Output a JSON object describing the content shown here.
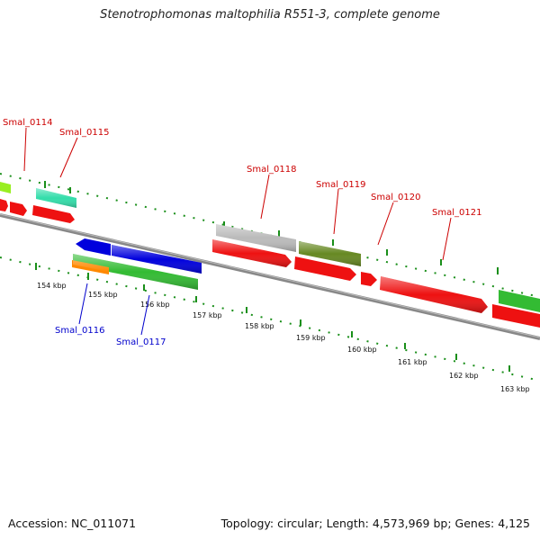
{
  "title": "Stenotrophomonas maltophilia R551-3, complete genome",
  "footer": {
    "accession": "Accession: NC_011071",
    "summary": "Topology: circular; Length: 4,573,969 bp; Genes: 4,125"
  },
  "colors": {
    "backbone": "#777777",
    "ticks": "#1a8f1a",
    "label_red": "#cc0000",
    "label_blue": "#0000cc"
  },
  "scale_labels": [
    "154 kbp",
    "155 kbp",
    "156 kbp",
    "157 kbp",
    "158 kbp",
    "159 kbp",
    "160 kbp",
    "161 kbp",
    "162 kbp",
    "163 kbp"
  ],
  "gene_labels": [
    {
      "text": "Smal_0114",
      "color": "#cc0000"
    },
    {
      "text": "Smal_0115",
      "color": "#cc0000"
    },
    {
      "text": "Smal_0116",
      "color": "#0000cc"
    },
    {
      "text": "Smal_0117",
      "color": "#0000cc"
    },
    {
      "text": "Smal_0118",
      "color": "#cc0000"
    },
    {
      "text": "Smal_0119",
      "color": "#cc0000"
    },
    {
      "text": "Smal_0120",
      "color": "#cc0000"
    },
    {
      "text": "Smal_0121",
      "color": "#cc0000"
    }
  ],
  "feature_colors": [
    "#99ee22",
    "#33ddaa",
    "#ee1111",
    "#0000dd",
    "#33bb33",
    "#ff8800",
    "#bbbbbb",
    "#668822"
  ]
}
